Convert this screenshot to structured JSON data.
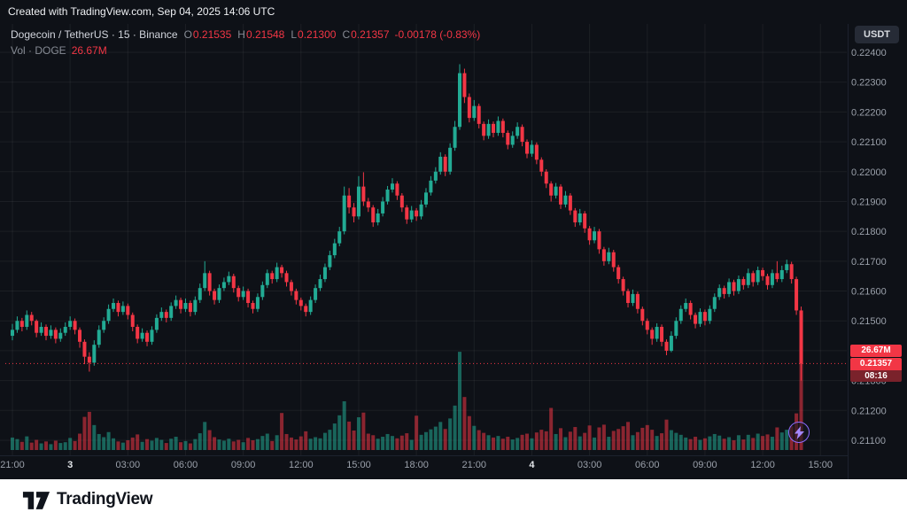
{
  "top_bar": {
    "text": "Created with TradingView.com, Sep 04, 2025 14:06 UTC"
  },
  "header": {
    "symbol_title": "Dogecoin / TetherUS · 15 · Binance",
    "ohlc": {
      "o_label": "O",
      "o": "0.21535",
      "h_label": "H",
      "h": "0.21548",
      "l_label": "L",
      "l": "0.21300",
      "c_label": "C",
      "c": "0.21357",
      "change": "-0.00178 (-0.83%)"
    },
    "volume_label": "Vol · DOGE",
    "volume_value": "26.67M",
    "currency_button": "USDT"
  },
  "price_scale": {
    "labels": [
      "0.22400",
      "0.22300",
      "0.22200",
      "0.22100",
      "0.22000",
      "0.21900",
      "0.21800",
      "0.21700",
      "0.21600",
      "0.21500",
      "0.21400",
      "0.21300",
      "0.21200",
      "0.21100"
    ],
    "badges": {
      "volume": "26.67M",
      "price": "0.21357",
      "countdown": "08:16"
    }
  },
  "footer": {
    "brand": "TradingView"
  },
  "colors": {
    "background": "#0e1117",
    "up": "#22ab94",
    "down": "#f23645",
    "axis_text": "#9aa0aa",
    "day_text": "#e3e6ea",
    "grid": "rgba(255,255,255,0.06)",
    "separator": "#1d222e"
  },
  "chart_data": {
    "type": "candlestick",
    "symbol": "Dogecoin / TetherUS",
    "ticker": "DOGEUSDT",
    "exchange": "Binance",
    "interval_minutes": 15,
    "last_price": 0.21357,
    "last_volume_millions": 26.67,
    "price_axis": {
      "min": 0.211,
      "max": 0.224,
      "step": 0.001
    },
    "volume_unit": "millions DOGE",
    "time_labels": [
      {
        "i": 0,
        "t": "21:00"
      },
      {
        "i": 12,
        "t": "3",
        "day": true
      },
      {
        "i": 24,
        "t": "03:00"
      },
      {
        "i": 36,
        "t": "06:00"
      },
      {
        "i": 48,
        "t": "09:00"
      },
      {
        "i": 60,
        "t": "12:00"
      },
      {
        "i": 72,
        "t": "15:00"
      },
      {
        "i": 84,
        "t": "18:00"
      },
      {
        "i": 96,
        "t": "21:00"
      },
      {
        "i": 108,
        "t": "4",
        "day": true
      },
      {
        "i": 120,
        "t": "03:00"
      },
      {
        "i": 132,
        "t": "06:00"
      },
      {
        "i": 144,
        "t": "09:00"
      },
      {
        "i": 156,
        "t": "12:00"
      },
      {
        "i": 168,
        "t": "15:00"
      }
    ],
    "candles_format": [
      "open",
      "high",
      "low",
      "close",
      "volume_millions"
    ],
    "candles": [
      [
        0.2145,
        0.2149,
        0.21435,
        0.2147,
        3.2
      ],
      [
        0.2147,
        0.21515,
        0.2146,
        0.215,
        2.8
      ],
      [
        0.215,
        0.2151,
        0.21465,
        0.2148,
        2.1
      ],
      [
        0.2148,
        0.21535,
        0.2147,
        0.2152,
        3.5
      ],
      [
        0.2152,
        0.2153,
        0.21485,
        0.215,
        1.9
      ],
      [
        0.215,
        0.21505,
        0.21445,
        0.2146,
        2.6
      ],
      [
        0.2146,
        0.21495,
        0.2145,
        0.2148,
        1.7
      ],
      [
        0.2148,
        0.21488,
        0.21435,
        0.2145,
        2.2
      ],
      [
        0.2145,
        0.21485,
        0.2144,
        0.2147,
        1.5
      ],
      [
        0.2147,
        0.21478,
        0.21425,
        0.2144,
        2.4
      ],
      [
        0.2144,
        0.21475,
        0.2143,
        0.2146,
        1.8
      ],
      [
        0.2146,
        0.21495,
        0.2145,
        0.2148,
        2.0
      ],
      [
        0.2148,
        0.21515,
        0.2147,
        0.215,
        3.1
      ],
      [
        0.215,
        0.21508,
        0.21455,
        0.2147,
        2.3
      ],
      [
        0.2147,
        0.21478,
        0.2141,
        0.2143,
        4.2
      ],
      [
        0.2143,
        0.21438,
        0.21355,
        0.2138,
        8.5
      ],
      [
        0.2138,
        0.21395,
        0.2133,
        0.2136,
        9.8
      ],
      [
        0.2136,
        0.21435,
        0.2135,
        0.2142,
        6.4
      ],
      [
        0.2142,
        0.21485,
        0.2141,
        0.2147,
        4.1
      ],
      [
        0.2147,
        0.21512,
        0.2146,
        0.215,
        3.3
      ],
      [
        0.215,
        0.21555,
        0.2149,
        0.2154,
        4.6
      ],
      [
        0.2154,
        0.21575,
        0.2153,
        0.2156,
        3.0
      ],
      [
        0.2156,
        0.21568,
        0.21515,
        0.2153,
        2.2
      ],
      [
        0.2153,
        0.21565,
        0.2152,
        0.2155,
        1.9
      ],
      [
        0.2155,
        0.21558,
        0.21505,
        0.2152,
        2.5
      ],
      [
        0.2152,
        0.21528,
        0.21465,
        0.2148,
        3.2
      ],
      [
        0.2148,
        0.21488,
        0.21425,
        0.2144,
        4.0
      ],
      [
        0.2144,
        0.21475,
        0.2143,
        0.2146,
        2.1
      ],
      [
        0.2146,
        0.21468,
        0.21415,
        0.2143,
        2.8
      ],
      [
        0.2143,
        0.21482,
        0.2142,
        0.2147,
        2.4
      ],
      [
        0.2147,
        0.21522,
        0.2146,
        0.2151,
        3.1
      ],
      [
        0.2151,
        0.21545,
        0.215,
        0.2153,
        2.6
      ],
      [
        0.2153,
        0.21538,
        0.21495,
        0.2151,
        1.8
      ],
      [
        0.2151,
        0.21562,
        0.215,
        0.2155,
        2.9
      ],
      [
        0.2155,
        0.21585,
        0.2154,
        0.2157,
        3.4
      ],
      [
        0.2157,
        0.21578,
        0.21525,
        0.2154,
        2.0
      ],
      [
        0.2154,
        0.21575,
        0.2153,
        0.2156,
        2.3
      ],
      [
        0.2156,
        0.21568,
        0.21515,
        0.2153,
        1.7
      ],
      [
        0.2153,
        0.21582,
        0.2152,
        0.2157,
        2.8
      ],
      [
        0.2157,
        0.21625,
        0.2156,
        0.2161,
        4.3
      ],
      [
        0.2161,
        0.217,
        0.216,
        0.2166,
        7.2
      ],
      [
        0.2166,
        0.21668,
        0.21585,
        0.216,
        5.1
      ],
      [
        0.216,
        0.21608,
        0.21555,
        0.2157,
        3.3
      ],
      [
        0.2157,
        0.21622,
        0.2156,
        0.2161,
        2.7
      ],
      [
        0.2161,
        0.21645,
        0.216,
        0.2163,
        2.4
      ],
      [
        0.2163,
        0.21665,
        0.2162,
        0.2165,
        2.9
      ],
      [
        0.2165,
        0.21658,
        0.21595,
        0.2161,
        2.2
      ],
      [
        0.2161,
        0.21618,
        0.21565,
        0.2158,
        2.6
      ],
      [
        0.2158,
        0.21615,
        0.2157,
        0.216,
        2.0
      ],
      [
        0.216,
        0.21608,
        0.21545,
        0.2156,
        3.1
      ],
      [
        0.2156,
        0.21568,
        0.21525,
        0.2154,
        2.5
      ],
      [
        0.2154,
        0.21592,
        0.2153,
        0.2158,
        2.8
      ],
      [
        0.2158,
        0.21632,
        0.2157,
        0.2162,
        3.6
      ],
      [
        0.2162,
        0.21672,
        0.2161,
        0.2166,
        4.2
      ],
      [
        0.2166,
        0.21668,
        0.21625,
        0.2164,
        2.3
      ],
      [
        0.2164,
        0.21695,
        0.2163,
        0.2168,
        3.8
      ],
      [
        0.2168,
        0.21688,
        0.21645,
        0.2166,
        9.5
      ],
      [
        0.2166,
        0.21668,
        0.21615,
        0.2163,
        4.1
      ],
      [
        0.2163,
        0.21638,
        0.21585,
        0.216,
        3.2
      ],
      [
        0.216,
        0.21608,
        0.21555,
        0.2157,
        2.7
      ],
      [
        0.2157,
        0.21578,
        0.21535,
        0.2155,
        3.5
      ],
      [
        0.2155,
        0.21558,
        0.21515,
        0.2153,
        4.8
      ],
      [
        0.2153,
        0.21582,
        0.2152,
        0.2157,
        2.9
      ],
      [
        0.2157,
        0.21622,
        0.2156,
        0.2161,
        3.3
      ],
      [
        0.2161,
        0.21655,
        0.216,
        0.2164,
        3.0
      ],
      [
        0.2164,
        0.21692,
        0.2163,
        0.2168,
        4.4
      ],
      [
        0.2168,
        0.21735,
        0.2167,
        0.2172,
        5.2
      ],
      [
        0.2172,
        0.21775,
        0.2171,
        0.2176,
        6.8
      ],
      [
        0.2176,
        0.21815,
        0.2175,
        0.218,
        8.9
      ],
      [
        0.218,
        0.2195,
        0.2179,
        0.2192,
        12.5
      ],
      [
        0.2192,
        0.21945,
        0.2186,
        0.2188,
        7.3
      ],
      [
        0.2188,
        0.21895,
        0.2183,
        0.2185,
        5.0
      ],
      [
        0.2185,
        0.21985,
        0.2184,
        0.2195,
        8.4
      ],
      [
        0.2195,
        0.21998,
        0.21885,
        0.219,
        9.6
      ],
      [
        0.219,
        0.21912,
        0.21865,
        0.2188,
        4.2
      ],
      [
        0.2188,
        0.21888,
        0.21815,
        0.2183,
        3.8
      ],
      [
        0.2183,
        0.21875,
        0.2182,
        0.2186,
        2.9
      ],
      [
        0.2186,
        0.21915,
        0.2185,
        0.219,
        3.4
      ],
      [
        0.219,
        0.21952,
        0.2189,
        0.2194,
        4.1
      ],
      [
        0.2194,
        0.21978,
        0.2193,
        0.2196,
        3.6
      ],
      [
        0.2196,
        0.21968,
        0.21905,
        0.2192,
        3.0
      ],
      [
        0.2192,
        0.21928,
        0.21865,
        0.2188,
        3.7
      ],
      [
        0.2188,
        0.21888,
        0.21825,
        0.2184,
        4.3
      ],
      [
        0.2184,
        0.21885,
        0.2183,
        0.2187,
        2.6
      ],
      [
        0.2187,
        0.21878,
        0.21835,
        0.2185,
        8.8
      ],
      [
        0.2185,
        0.21905,
        0.2184,
        0.2189,
        3.9
      ],
      [
        0.2189,
        0.21945,
        0.2188,
        0.2193,
        4.6
      ],
      [
        0.2193,
        0.21985,
        0.2192,
        0.2197,
        5.3
      ],
      [
        0.2197,
        0.22015,
        0.2196,
        0.22,
        6.0
      ],
      [
        0.22,
        0.22065,
        0.2199,
        0.2205,
        7.2
      ],
      [
        0.2205,
        0.22058,
        0.21985,
        0.22,
        5.4
      ],
      [
        0.22,
        0.22095,
        0.2199,
        0.2208,
        8.1
      ],
      [
        0.2208,
        0.2217,
        0.2207,
        0.2215,
        11.4
      ],
      [
        0.2215,
        0.2236,
        0.2214,
        0.2233,
        25.2
      ],
      [
        0.2233,
        0.22345,
        0.2223,
        0.2225,
        13.6
      ],
      [
        0.2225,
        0.22262,
        0.22165,
        0.2218,
        8.7
      ],
      [
        0.2218,
        0.2224,
        0.2217,
        0.2222,
        6.2
      ],
      [
        0.2222,
        0.22228,
        0.22145,
        0.2216,
        5.1
      ],
      [
        0.2216,
        0.22168,
        0.22105,
        0.2212,
        4.4
      ],
      [
        0.2212,
        0.22175,
        0.2211,
        0.2216,
        3.8
      ],
      [
        0.2216,
        0.22168,
        0.22115,
        0.2213,
        3.2
      ],
      [
        0.2213,
        0.22185,
        0.2212,
        0.2217,
        3.6
      ],
      [
        0.2217,
        0.22178,
        0.22115,
        0.2213,
        2.9
      ],
      [
        0.2213,
        0.22138,
        0.22075,
        0.2209,
        3.4
      ],
      [
        0.2209,
        0.22135,
        0.2208,
        0.2212,
        2.7
      ],
      [
        0.2212,
        0.22165,
        0.2211,
        0.2215,
        3.1
      ],
      [
        0.2215,
        0.22158,
        0.22085,
        0.221,
        3.9
      ],
      [
        0.221,
        0.22108,
        0.22045,
        0.2206,
        4.2
      ],
      [
        0.2206,
        0.22105,
        0.2205,
        0.2209,
        3.0
      ],
      [
        0.2209,
        0.22098,
        0.22025,
        0.2204,
        4.5
      ],
      [
        0.2204,
        0.22048,
        0.21985,
        0.22,
        5.2
      ],
      [
        0.22,
        0.22008,
        0.21945,
        0.2196,
        4.8
      ],
      [
        0.2196,
        0.21968,
        0.219,
        0.2192,
        10.8
      ],
      [
        0.2192,
        0.21962,
        0.2191,
        0.2195,
        4.1
      ],
      [
        0.2195,
        0.21958,
        0.21875,
        0.2189,
        5.6
      ],
      [
        0.2189,
        0.21935,
        0.2188,
        0.2192,
        3.3
      ],
      [
        0.2192,
        0.21928,
        0.21855,
        0.2187,
        4.7
      ],
      [
        0.2187,
        0.21878,
        0.21815,
        0.2183,
        5.9
      ],
      [
        0.2183,
        0.21875,
        0.2182,
        0.2186,
        3.5
      ],
      [
        0.2186,
        0.21868,
        0.21795,
        0.2181,
        4.4
      ],
      [
        0.2181,
        0.21818,
        0.21755,
        0.2177,
        6.3
      ],
      [
        0.2177,
        0.21815,
        0.2176,
        0.218,
        3.2
      ],
      [
        0.218,
        0.21808,
        0.21725,
        0.2174,
        5.8
      ],
      [
        0.2174,
        0.21748,
        0.21685,
        0.217,
        6.5
      ],
      [
        0.217,
        0.21745,
        0.2169,
        0.2173,
        3.4
      ],
      [
        0.2173,
        0.21738,
        0.21665,
        0.2168,
        4.9
      ],
      [
        0.2168,
        0.21688,
        0.21625,
        0.2164,
        5.4
      ],
      [
        0.2164,
        0.21648,
        0.21585,
        0.216,
        6.1
      ],
      [
        0.216,
        0.21608,
        0.21545,
        0.2156,
        7.2
      ],
      [
        0.2156,
        0.21605,
        0.2155,
        0.2159,
        3.8
      ],
      [
        0.2159,
        0.21598,
        0.21525,
        0.2154,
        4.6
      ],
      [
        0.2154,
        0.21548,
        0.21485,
        0.215,
        5.7
      ],
      [
        0.215,
        0.21508,
        0.21455,
        0.2147,
        6.4
      ],
      [
        0.2147,
        0.21478,
        0.2142,
        0.2144,
        5.2
      ],
      [
        0.2144,
        0.21492,
        0.2143,
        0.2148,
        3.6
      ],
      [
        0.2148,
        0.21488,
        0.21415,
        0.2143,
        4.3
      ],
      [
        0.2143,
        0.21438,
        0.21385,
        0.214,
        7.8
      ],
      [
        0.214,
        0.21465,
        0.21395,
        0.2145,
        5.1
      ],
      [
        0.2145,
        0.21512,
        0.2144,
        0.215,
        4.4
      ],
      [
        0.215,
        0.21552,
        0.2149,
        0.2154,
        3.9
      ],
      [
        0.2154,
        0.21575,
        0.2153,
        0.2156,
        3.2
      ],
      [
        0.2156,
        0.21568,
        0.21505,
        0.2152,
        2.8
      ],
      [
        0.2152,
        0.21528,
        0.21475,
        0.2149,
        3.4
      ],
      [
        0.2149,
        0.21542,
        0.2148,
        0.2153,
        2.6
      ],
      [
        0.2153,
        0.21538,
        0.21485,
        0.215,
        3.0
      ],
      [
        0.215,
        0.21552,
        0.2149,
        0.2154,
        3.5
      ],
      [
        0.2154,
        0.21592,
        0.2153,
        0.2158,
        4.1
      ],
      [
        0.2158,
        0.21622,
        0.2157,
        0.2161,
        3.7
      ],
      [
        0.2161,
        0.21618,
        0.21575,
        0.2159,
        2.9
      ],
      [
        0.2159,
        0.21642,
        0.2158,
        0.2163,
        3.3
      ],
      [
        0.2163,
        0.21638,
        0.21585,
        0.216,
        2.5
      ],
      [
        0.216,
        0.21652,
        0.2159,
        0.2164,
        3.8
      ],
      [
        0.2164,
        0.21648,
        0.21605,
        0.2162,
        2.7
      ],
      [
        0.2162,
        0.21675,
        0.2161,
        0.2166,
        3.9
      ],
      [
        0.2166,
        0.21668,
        0.21615,
        0.2163,
        3.1
      ],
      [
        0.2163,
        0.21682,
        0.2162,
        0.2167,
        4.2
      ],
      [
        0.2167,
        0.21678,
        0.21635,
        0.2165,
        3.6
      ],
      [
        0.2165,
        0.21658,
        0.21605,
        0.2162,
        4.0
      ],
      [
        0.2162,
        0.21672,
        0.2161,
        0.2166,
        3.4
      ],
      [
        0.2166,
        0.217,
        0.2163,
        0.2164,
        5.8
      ],
      [
        0.2164,
        0.21685,
        0.2163,
        0.2167,
        4.5
      ],
      [
        0.2167,
        0.21705,
        0.2166,
        0.2169,
        5.2
      ],
      [
        0.2169,
        0.21698,
        0.21625,
        0.2164,
        6.1
      ],
      [
        0.2164,
        0.21648,
        0.2152,
        0.21535,
        9.4
      ],
      [
        0.21535,
        0.21548,
        0.213,
        0.21357,
        26.67
      ]
    ]
  }
}
